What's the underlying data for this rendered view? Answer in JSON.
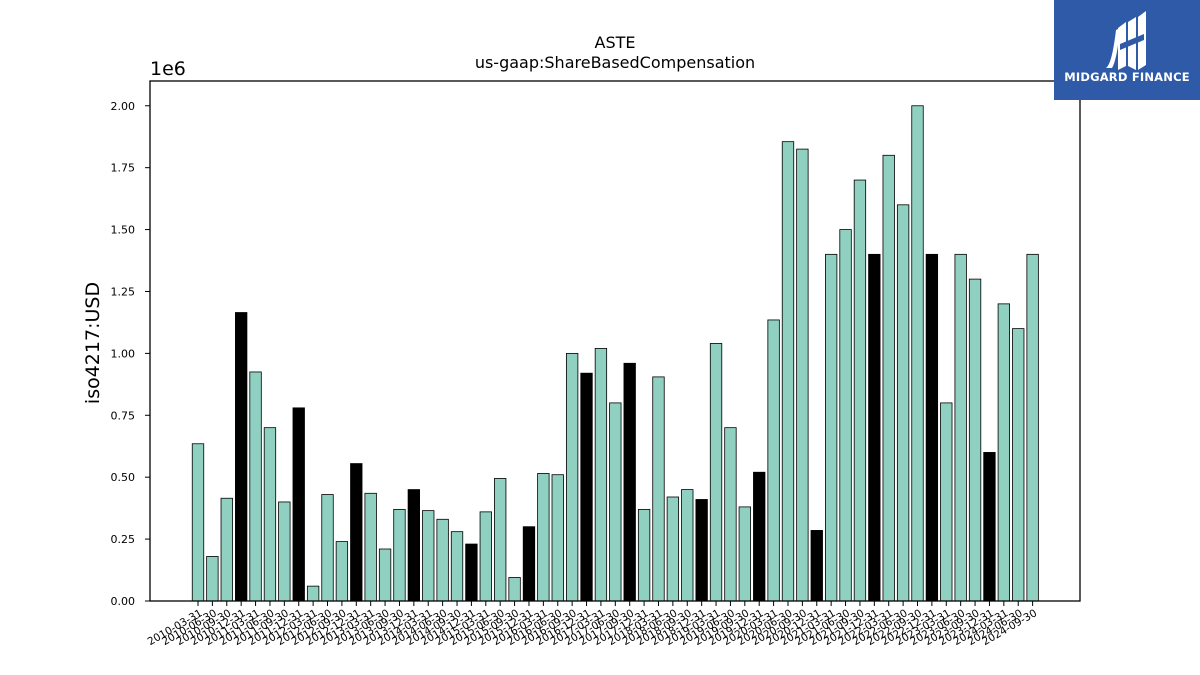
{
  "chart_data": {
    "type": "bar",
    "title": "ASTE",
    "subtitle": "us-gaap:ShareBasedCompensation",
    "ylabel": "iso4217:USD",
    "xlabel": "",
    "y_scale_label": "1e6",
    "ylim": [
      0,
      2100000
    ],
    "yticks": [
      "0.00",
      "0.25",
      "0.50",
      "0.75",
      "1.00",
      "1.25",
      "1.50",
      "1.75",
      "2.00"
    ],
    "grid": false,
    "colors": {
      "default": "#8fd0c1",
      "highlight": "#000000",
      "edge": "#000000"
    },
    "categories": [
      "2010-03-31",
      "2010-06-30",
      "2010-09-30",
      "2010-12-31",
      "2011-03-31",
      "2011-06-30",
      "2011-09-30",
      "2011-12-31",
      "2012-03-31",
      "2012-06-30",
      "2012-09-30",
      "2012-12-31",
      "2013-03-31",
      "2013-06-30",
      "2013-09-30",
      "2013-12-31",
      "2014-03-31",
      "2014-06-30",
      "2014-09-30",
      "2014-12-31",
      "2015-03-31",
      "2015-06-30",
      "2015-09-30",
      "2015-12-31",
      "2016-03-31",
      "2016-06-30",
      "2016-09-30",
      "2016-12-31",
      "2017-03-31",
      "2017-06-30",
      "2017-09-30",
      "2017-12-31",
      "2018-03-31",
      "2018-06-30",
      "2018-09-30",
      "2018-12-31",
      "2019-03-31",
      "2019-06-30",
      "2019-09-30",
      "2019-12-31",
      "2020-03-31",
      "2020-06-30",
      "2020-09-30",
      "2020-12-31",
      "2021-03-31",
      "2021-06-30",
      "2021-09-30",
      "2021-12-31",
      "2022-03-31",
      "2022-06-30",
      "2022-09-30",
      "2022-12-31",
      "2023-03-31",
      "2023-06-30",
      "2023-09-30",
      "2023-12-31",
      "2024-03-31",
      "2024-06-30",
      "2024-09-30"
    ],
    "values": [
      635000,
      180000,
      415000,
      1165000,
      925000,
      700000,
      400000,
      780000,
      60000,
      430000,
      240000,
      555000,
      435000,
      210000,
      370000,
      450000,
      365000,
      330000,
      280000,
      230000,
      360000,
      495000,
      95000,
      300000,
      515000,
      510000,
      1000000,
      920000,
      1020000,
      800000,
      960000,
      370000,
      905000,
      420000,
      450000,
      410000,
      1040000,
      700000,
      380000,
      520000,
      1135000,
      1855000,
      1825000,
      285000,
      1400000,
      1500000,
      1700000,
      1400000,
      1800000,
      1600000,
      2000000,
      1400000,
      800000,
      1400000,
      1300000,
      600000,
      1200000,
      1100000,
      1400000
    ],
    "highlighted": [
      "2010-12-31",
      "2011-12-31",
      "2012-12-31",
      "2013-12-31",
      "2014-12-31",
      "2015-12-31",
      "2016-12-31",
      "2017-09-30",
      "2018-12-31",
      "2019-12-31",
      "2020-12-31",
      "2021-12-31",
      "2022-12-31",
      "2023-12-31"
    ]
  },
  "logo": {
    "text": "MIDGARD FINANCE",
    "icon": "midgard-logo-icon"
  }
}
